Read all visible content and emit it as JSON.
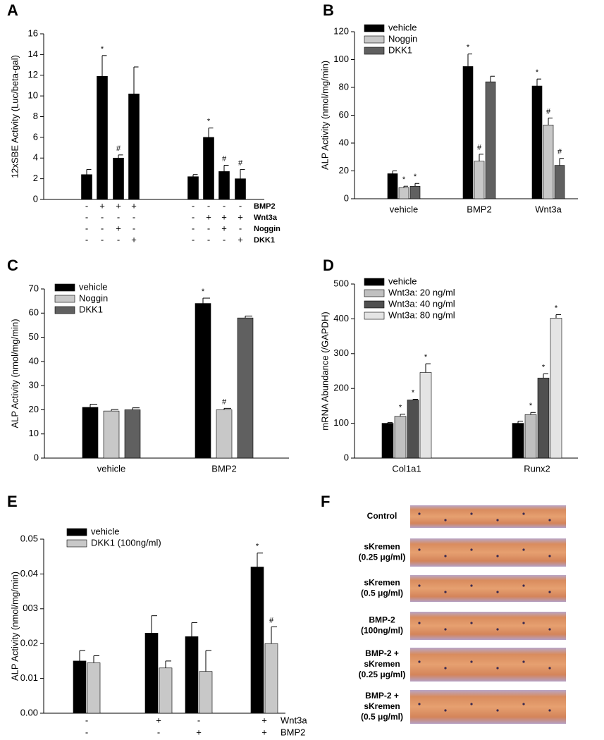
{
  "chart_data": [
    {
      "type": "bar",
      "panel": "A",
      "y_label": "12xSBE Activity (Luc/beta-gal)",
      "categories": [
        null,
        null,
        null,
        null,
        null,
        null,
        null,
        null
      ],
      "series": [
        {
          "color": "#000000",
          "values": [
            2.4,
            11.9,
            4.0,
            10.2,
            2.2,
            6.0,
            2.7,
            2.0
          ],
          "errors": [
            0.5,
            2.0,
            0.3,
            2.6,
            0.2,
            0.9,
            0.6,
            0.9
          ],
          "annotations": [
            null,
            "*",
            "#",
            null,
            null,
            "*",
            "#",
            "#"
          ]
        }
      ],
      "conditions": [
        {
          "name": "BMP2",
          "signs": [
            "-",
            "+",
            "+",
            "+",
            "-",
            "-",
            "-",
            "-"
          ]
        },
        {
          "name": "Wnt3a",
          "signs": [
            "-",
            "-",
            "-",
            "-",
            "-",
            "+",
            "+",
            "+"
          ]
        },
        {
          "name": "Noggin",
          "signs": [
            "-",
            "-",
            "+",
            "-",
            "-",
            "-",
            "+",
            "-"
          ]
        },
        {
          "name": "DKK1",
          "signs": [
            "-",
            "-",
            "-",
            "+",
            "-",
            "-",
            "-",
            "+"
          ]
        }
      ],
      "ylim": [
        0,
        16
      ],
      "yticks": [
        0,
        2,
        4,
        6,
        8,
        10,
        12,
        14,
        16
      ]
    },
    {
      "type": "bar",
      "panel": "B",
      "y_label": "ALP Activity (nmol/mg/min)",
      "categories": [
        "vehicle",
        "BMP2",
        "Wnt3a"
      ],
      "series": [
        {
          "name": "vehicle",
          "color": "#000000",
          "values": [
            18,
            95,
            81
          ],
          "errors": [
            2,
            9,
            5
          ],
          "annotations": [
            null,
            "*",
            "*"
          ]
        },
        {
          "name": "Noggin",
          "color": "#c8c8c8",
          "values": [
            8,
            27,
            53
          ],
          "errors": [
            1,
            5,
            5
          ],
          "annotations": [
            "*",
            "#",
            "#"
          ]
        },
        {
          "name": "DKK1",
          "color": "#606060",
          "values": [
            9,
            84,
            24
          ],
          "errors": [
            2,
            4,
            5
          ],
          "annotations": [
            "*",
            null,
            "#"
          ]
        }
      ],
      "ylim": [
        0,
        120
      ],
      "yticks": [
        0,
        20,
        40,
        60,
        80,
        100,
        120
      ]
    },
    {
      "type": "bar",
      "panel": "C",
      "y_label": "ALP Activity (nmol/mg/min)",
      "categories": [
        "vehicle",
        "BMP2"
      ],
      "series": [
        {
          "name": "vehicle",
          "color": "#000000",
          "values": [
            21,
            64
          ],
          "errors": [
            1.3,
            2.2
          ],
          "annotations": [
            null,
            "*"
          ]
        },
        {
          "name": "Noggin",
          "color": "#c8c8c8",
          "values": [
            19.5,
            20
          ],
          "errors": [
            0.6,
            0.6
          ],
          "annotations": [
            null,
            "#"
          ]
        },
        {
          "name": "DKK1",
          "color": "#606060",
          "values": [
            20,
            58
          ],
          "errors": [
            0.8,
            0.8
          ],
          "annotations": [
            null,
            null
          ]
        }
      ],
      "ylim": [
        0,
        70
      ],
      "yticks": [
        0,
        10,
        20,
        30,
        40,
        50,
        60,
        70
      ]
    },
    {
      "type": "bar",
      "panel": "D",
      "y_label": "mRNA Abundance (/GAPDH)",
      "categories": [
        "Col1a1",
        "Runx2"
      ],
      "series": [
        {
          "name": "vehicle",
          "color": "#000000",
          "values": [
            100,
            100
          ],
          "errors": [
            2,
            6
          ],
          "annotations": [
            null,
            null
          ]
        },
        {
          "name": "Wnt3a: 20 ng/ml",
          "color": "#c0c0c0",
          "values": [
            120,
            125
          ],
          "errors": [
            6,
            6
          ],
          "annotations": [
            "*",
            "*"
          ]
        },
        {
          "name": "Wnt3a: 40 ng/ml",
          "color": "#505050",
          "values": [
            167,
            230
          ],
          "errors": [
            2,
            12
          ],
          "annotations": [
            "*",
            "*"
          ]
        },
        {
          "name": "Wnt3a: 80 ng/ml",
          "color": "#e4e4e4",
          "values": [
            246,
            402
          ],
          "errors": [
            25,
            10
          ],
          "annotations": [
            "*",
            "*"
          ]
        }
      ],
      "ylim": [
        0,
        500
      ],
      "yticks": [
        0,
        100,
        200,
        300,
        400,
        500
      ]
    },
    {
      "type": "bar",
      "panel": "E",
      "y_label": "ALP Activity (nmol/mg/min)",
      "categories": [
        null,
        null,
        null,
        null
      ],
      "series": [
        {
          "name": "vehicle",
          "color": "#000000",
          "values": [
            0.015,
            0.023,
            0.022,
            0.042
          ],
          "errors": [
            0.003,
            0.005,
            0.004,
            0.004
          ],
          "annotations": [
            null,
            null,
            null,
            "*"
          ]
        },
        {
          "name": "DKK1 (100ng/ml)",
          "color": "#c8c8c8",
          "values": [
            0.0145,
            0.013,
            0.012,
            0.02
          ],
          "errors": [
            0.002,
            0.002,
            0.006,
            0.0048
          ],
          "annotations": [
            null,
            null,
            null,
            "#"
          ]
        }
      ],
      "conditions": [
        {
          "name": "Wnt3a",
          "signs": [
            "-",
            "+",
            "-",
            "+"
          ]
        },
        {
          "name": "BMP2",
          "signs": [
            "-",
            "-",
            "+",
            "+"
          ]
        }
      ],
      "ylim": [
        0,
        0.05
      ],
      "yticks": [
        {
          "value": 0,
          "label": "0.00"
        },
        0.01,
        0.02,
        {
          "value": 0.03,
          "label": "003"
        },
        0.04,
        0.05
      ]
    }
  ],
  "panel_f": {
    "panel": "F",
    "rows": [
      [
        "Control"
      ],
      [
        "sKremen",
        "(0.25 μg/ml)"
      ],
      [
        "sKremen",
        "(0.5 μg/ml)"
      ],
      [
        "BMP-2",
        "(100ng/ml)"
      ],
      [
        "BMP-2 +",
        "sKremen",
        "(0.25 μg/ml)"
      ],
      [
        "BMP-2 +",
        "sKremen",
        "(0.5 μg/ml)"
      ]
    ]
  }
}
